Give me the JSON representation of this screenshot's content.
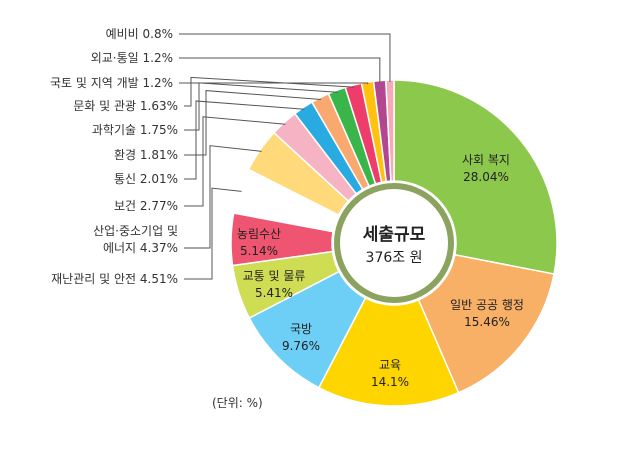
{
  "chart_data": {
    "type": "pie",
    "center_title": "세출규모",
    "center_subtitle": "376조 원",
    "unit_note": "(단위: %)",
    "slices": [
      {
        "label": "사회 복지",
        "value": 28.04,
        "display": "28.04%",
        "color": "#8CC84B"
      },
      {
        "label": "일반 공공 행정",
        "value": 15.46,
        "display": "15.46%",
        "color": "#F8AF66"
      },
      {
        "label": "교육",
        "value": 14.1,
        "display": "14.1%",
        "color": "#FFD500"
      },
      {
        "label": "국방",
        "value": 9.76,
        "display": "9.76%",
        "color": "#6DCFF6"
      },
      {
        "label": "교통 및 물류",
        "value": 5.41,
        "display": "5.41%",
        "color": "#CFDD55"
      },
      {
        "label": "농림수산",
        "value": 5.14,
        "display": "5.14%",
        "color": "#EF5570"
      },
      {
        "label": "재난관리 및 안전",
        "value": 4.51,
        "display": "4.51%",
        "color": "#FFFFFF"
      },
      {
        "label": "산업·중소기업 및\n에너지",
        "value": 4.37,
        "display": "4.37%",
        "color": "#FFD97A"
      },
      {
        "label": "보건",
        "value": 2.77,
        "display": "2.77%",
        "color": "#F6B3C4"
      },
      {
        "label": "통신",
        "value": 2.01,
        "display": "2.01%",
        "color": "#29ABE2"
      },
      {
        "label": "환경",
        "value": 1.81,
        "display": "1.81%",
        "color": "#F9A870"
      },
      {
        "label": "과학기술",
        "value": 1.75,
        "display": "1.75%",
        "color": "#3AB54A"
      },
      {
        "label": "문화 및 관광",
        "value": 1.63,
        "display": "1.63%",
        "color": "#EE3D6A"
      },
      {
        "label": "국토 및 지역 개발",
        "value": 1.2,
        "display": "1.2%",
        "color": "#FFC20E"
      },
      {
        "label": "외교·통일",
        "value": 1.2,
        "display": "1.2%",
        "color": "#B3478F"
      },
      {
        "label": "예비비",
        "value": 0.8,
        "display": "0.8%",
        "color": "#F7A9B8"
      }
    ]
  }
}
